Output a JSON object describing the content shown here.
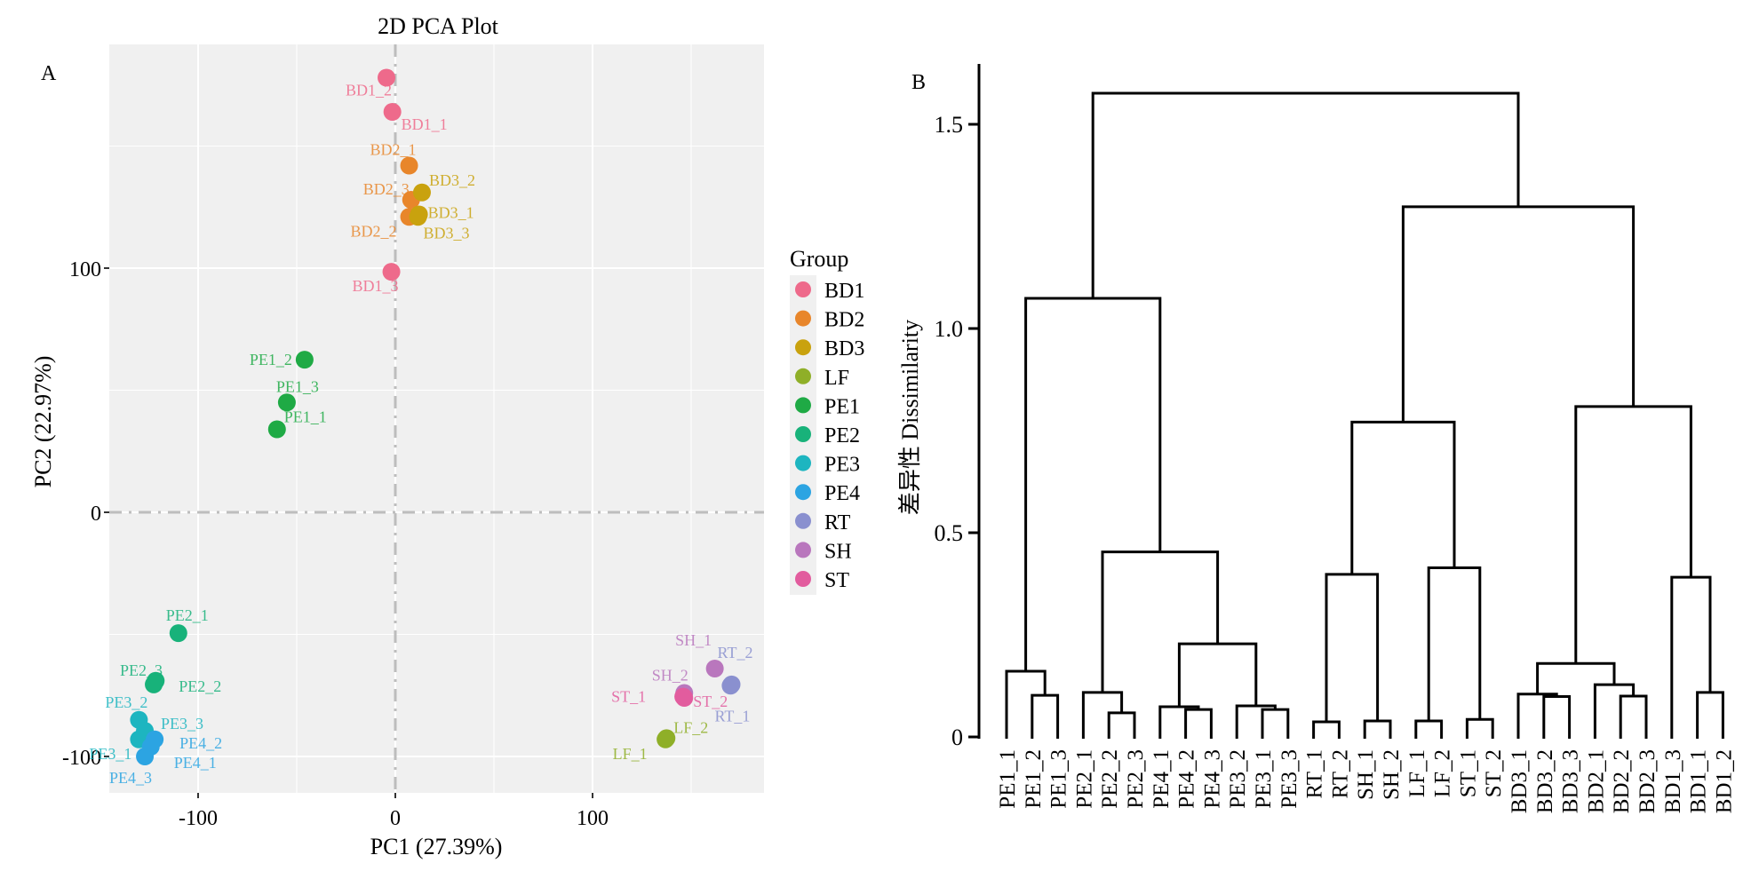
{
  "chart_data": [
    {
      "panel_label": "A",
      "type": "scatter",
      "title": "2D PCA Plot",
      "xlabel": "PC1 (27.39%)",
      "ylabel": "PC2 (22.97%)",
      "xlim": [
        -145,
        185
      ],
      "ylim": [
        -113,
        190
      ],
      "xticks": [
        -100,
        0,
        100
      ],
      "xtick_labels": [
        "-100",
        "0",
        "100"
      ],
      "yticks": [
        -100,
        0,
        100
      ],
      "ytick_labels": [
        "-100",
        "0",
        "100"
      ],
      "grid": true,
      "reference_lines": {
        "x": 0,
        "y": 0,
        "style": "dashed"
      },
      "legend": {
        "title": "Group",
        "position": "right",
        "entries": [
          {
            "label": "BD1",
            "color": "#EE6A8B"
          },
          {
            "label": "BD2",
            "color": "#E8862B"
          },
          {
            "label": "BD3",
            "color": "#C9A20E"
          },
          {
            "label": "LF",
            "color": "#8FAF28"
          },
          {
            "label": "PE1",
            "color": "#1FAA45"
          },
          {
            "label": "PE2",
            "color": "#18B27A"
          },
          {
            "label": "PE3",
            "color": "#1DB5C0"
          },
          {
            "label": "PE4",
            "color": "#2CA4E2"
          },
          {
            "label": "RT",
            "color": "#8A90CF"
          },
          {
            "label": "SH",
            "color": "#B977BD"
          },
          {
            "label": "ST",
            "color": "#E25C9E"
          }
        ]
      },
      "points": [
        {
          "label": "BD1_1",
          "group": "BD1",
          "x": -1.5,
          "y": 164
        },
        {
          "label": "BD1_2",
          "group": "BD1",
          "x": -4.5,
          "y": 178
        },
        {
          "label": "BD1_3",
          "group": "BD1",
          "x": -2,
          "y": 98.5
        },
        {
          "label": "BD2_1",
          "group": "BD2",
          "x": 7,
          "y": 142
        },
        {
          "label": "BD2_2",
          "group": "BD2",
          "x": 7,
          "y": 121
        },
        {
          "label": "BD2_3",
          "group": "BD2",
          "x": 8,
          "y": 128
        },
        {
          "label": "BD3_1",
          "group": "BD3",
          "x": 12,
          "y": 122
        },
        {
          "label": "BD3_2",
          "group": "BD3",
          "x": 13.5,
          "y": 131
        },
        {
          "label": "BD3_3",
          "group": "BD3",
          "x": 11.5,
          "y": 121
        },
        {
          "label": "PE1_1",
          "group": "PE1",
          "x": -60,
          "y": 34
        },
        {
          "label": "PE1_2",
          "group": "PE1",
          "x": -46,
          "y": 62.5
        },
        {
          "label": "PE1_3",
          "group": "PE1",
          "x": -55,
          "y": 45
        },
        {
          "label": "PE2_1",
          "group": "PE2",
          "x": -110,
          "y": -49.5
        },
        {
          "label": "PE2_2",
          "group": "PE2",
          "x": -121.5,
          "y": -69
        },
        {
          "label": "PE2_3",
          "group": "PE2",
          "x": -122.5,
          "y": -70.5
        },
        {
          "label": "PE3_1",
          "group": "PE3",
          "x": -130,
          "y": -93
        },
        {
          "label": "PE3_2",
          "group": "PE3",
          "x": -130,
          "y": -85
        },
        {
          "label": "PE3_3",
          "group": "PE3",
          "x": -127,
          "y": -89.5
        },
        {
          "label": "PE4_1",
          "group": "PE4",
          "x": -124,
          "y": -96
        },
        {
          "label": "PE4_2",
          "group": "PE4",
          "x": -122,
          "y": -93
        },
        {
          "label": "PE4_3",
          "group": "PE4",
          "x": -127,
          "y": -100
        },
        {
          "label": "LF_1",
          "group": "LF",
          "x": 137,
          "y": -93
        },
        {
          "label": "LF_2",
          "group": "LF",
          "x": 137.5,
          "y": -92.5
        },
        {
          "label": "RT_1",
          "group": "RT",
          "x": 170,
          "y": -71
        },
        {
          "label": "RT_2",
          "group": "RT",
          "x": 170.5,
          "y": -70.5
        },
        {
          "label": "SH_1",
          "group": "SH",
          "x": 162,
          "y": -64
        },
        {
          "label": "SH_2",
          "group": "SH",
          "x": 146.5,
          "y": -74
        },
        {
          "label": "ST_1",
          "group": "ST",
          "x": 146,
          "y": -75.5
        },
        {
          "label": "ST_2",
          "group": "ST",
          "x": 146.5,
          "y": -76
        }
      ]
    },
    {
      "panel_label": "B",
      "type": "dendrogram",
      "ylabel": "差异性 Dissimilarity",
      "ylim": [
        0,
        1.6
      ],
      "yticks": [
        0,
        0.5,
        1.0,
        1.5
      ],
      "ytick_labels": [
        "0",
        "0.5",
        "1.0",
        "1.5"
      ],
      "leaves": [
        "PE1_1",
        "PE1_2",
        "PE1_3",
        "PE2_1",
        "PE2_2",
        "PE2_3",
        "PE4_1",
        "PE4_2",
        "PE4_3",
        "PE3_2",
        "PE3_1",
        "PE3_3",
        "RT_1",
        "RT_2",
        "SH_1",
        "SH_2",
        "LF_1",
        "LF_2",
        "ST_1",
        "ST_2",
        "BD3_1",
        "BD3_2",
        "BD3_3",
        "BD2_1",
        "BD2_2",
        "BD2_3",
        "BD1_3",
        "BD1_1",
        "BD1_2"
      ],
      "merges": [
        {
          "id": "a",
          "left": "PE1_2",
          "right": "PE1_3",
          "height": 0.102
        },
        {
          "id": "b",
          "left": "PE1_1",
          "right": "a",
          "height": 0.161
        },
        {
          "id": "c",
          "left": "PE2_2",
          "right": "PE2_3",
          "height": 0.059
        },
        {
          "id": "d",
          "left": "PE2_1",
          "right": "c",
          "height": 0.109
        },
        {
          "id": "e",
          "left": "PE4_2",
          "right": "PE4_3",
          "height": 0.067
        },
        {
          "id": "f",
          "left": "PE4_1",
          "right": "e",
          "height": 0.074
        },
        {
          "id": "g",
          "left": "PE3_1",
          "right": "PE3_3",
          "height": 0.067
        },
        {
          "id": "h",
          "left": "PE3_2",
          "right": "g",
          "height": 0.076
        },
        {
          "id": "i",
          "left": "f",
          "right": "h",
          "height": 0.228
        },
        {
          "id": "j",
          "left": "d",
          "right": "i",
          "height": 0.453
        },
        {
          "id": "k",
          "left": "b",
          "right": "j",
          "height": 1.074
        },
        {
          "id": "l",
          "left": "RT_1",
          "right": "RT_2",
          "height": 0.037
        },
        {
          "id": "m",
          "left": "SH_1",
          "right": "SH_2",
          "height": 0.039
        },
        {
          "id": "n",
          "left": "l",
          "right": "m",
          "height": 0.398
        },
        {
          "id": "o",
          "left": "LF_1",
          "right": "LF_2",
          "height": 0.039
        },
        {
          "id": "p",
          "left": "ST_1",
          "right": "ST_2",
          "height": 0.043
        },
        {
          "id": "q",
          "left": "o",
          "right": "p",
          "height": 0.414
        },
        {
          "id": "r",
          "left": "n",
          "right": "q",
          "height": 0.771
        },
        {
          "id": "s",
          "left": "BD3_2",
          "right": "BD3_3",
          "height": 0.099
        },
        {
          "id": "t",
          "left": "BD3_1",
          "right": "s",
          "height": 0.105
        },
        {
          "id": "u",
          "left": "BD2_2",
          "right": "BD2_3",
          "height": 0.1
        },
        {
          "id": "v",
          "left": "BD2_1",
          "right": "u",
          "height": 0.128
        },
        {
          "id": "w",
          "left": "t",
          "right": "v",
          "height": 0.18
        },
        {
          "id": "x",
          "left": "BD1_1",
          "right": "BD1_2",
          "height": 0.109
        },
        {
          "id": "y",
          "left": "BD1_3",
          "right": "x",
          "height": 0.391
        },
        {
          "id": "z",
          "left": "w",
          "right": "y",
          "height": 0.809
        },
        {
          "id": "aa",
          "left": "r",
          "right": "z",
          "height": 1.298
        },
        {
          "id": "root",
          "left": "k",
          "right": "aa",
          "height": 1.576
        }
      ]
    }
  ]
}
